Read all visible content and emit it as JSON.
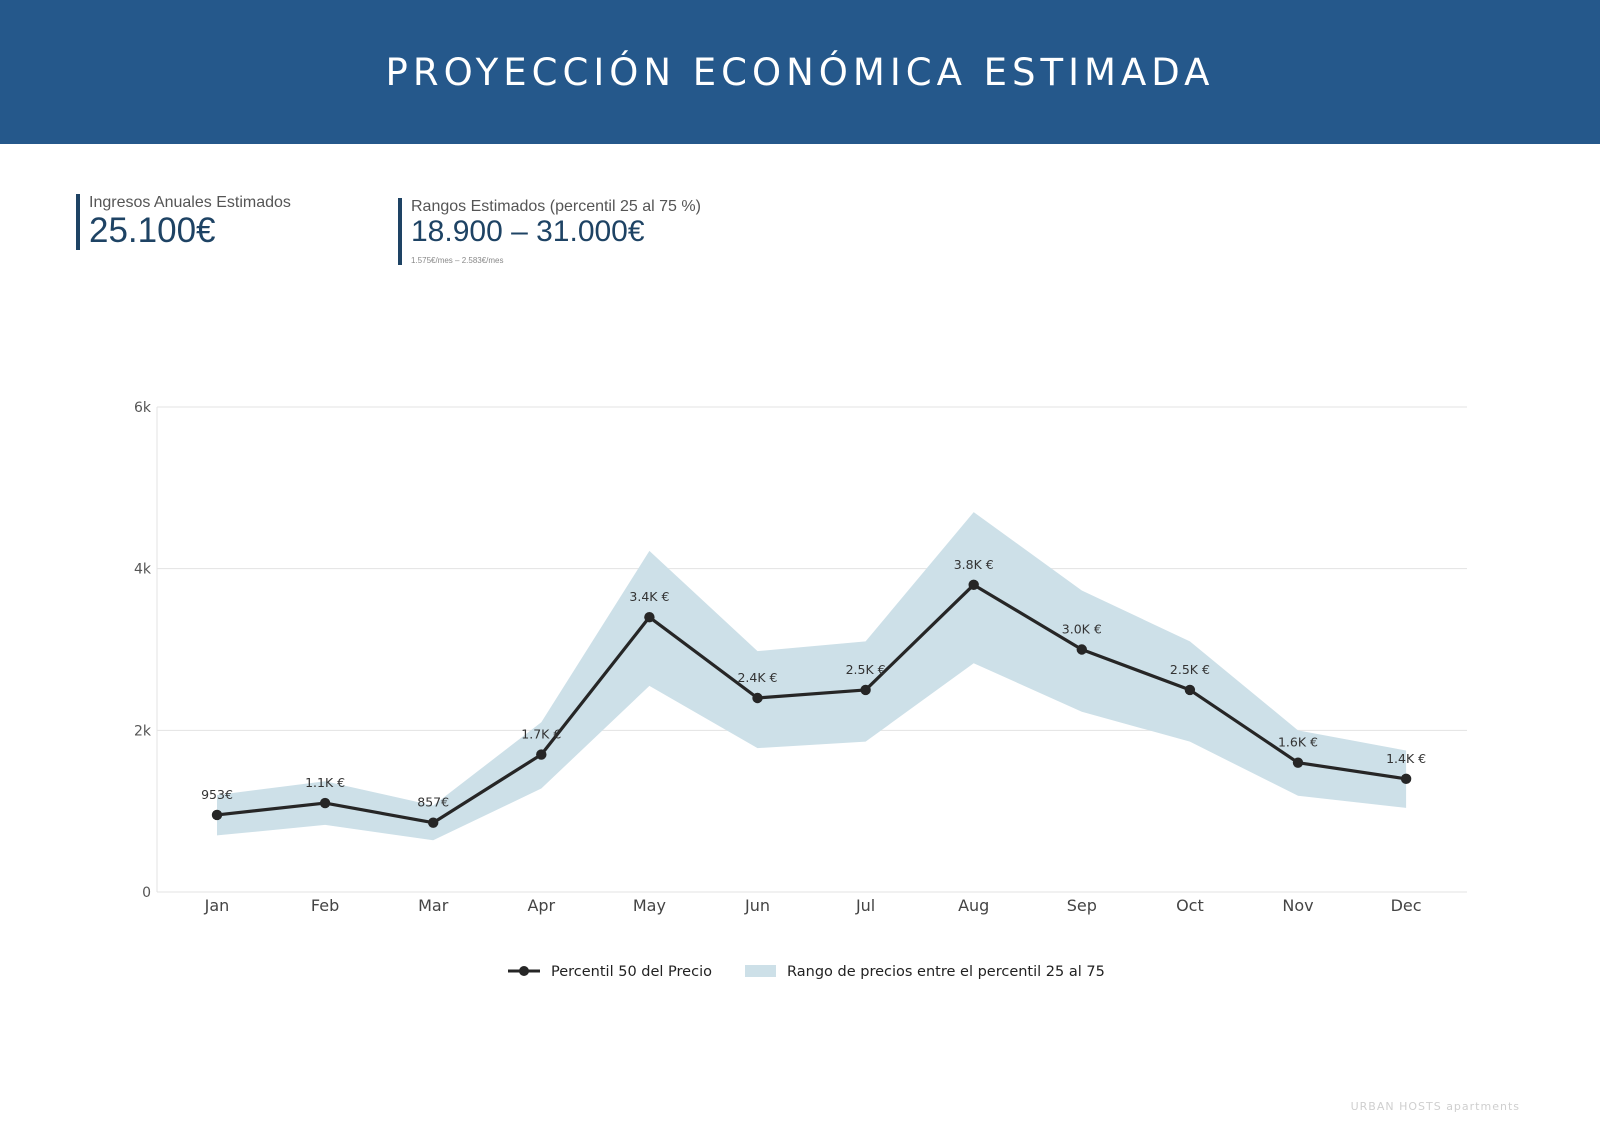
{
  "header": {
    "title": "PROYECCIÓN ECONÓMICA ESTIMADA"
  },
  "kpis": [
    {
      "label": "Ingresos Anuales Estimados",
      "value": "25.100€"
    },
    {
      "label": "Rangos Estimados (percentil 25 al 75 %)",
      "value": "18.900 – 31.000€",
      "sub": "1.575€/mes – 2.583€/mes"
    }
  ],
  "chart_data": {
    "type": "line",
    "categories": [
      "Jan",
      "Feb",
      "Mar",
      "Apr",
      "May",
      "Jun",
      "Jul",
      "Aug",
      "Sep",
      "Oct",
      "Nov",
      "Dec"
    ],
    "series": [
      {
        "name": "Percentil 50 del Precio",
        "values": [
          953,
          1100,
          857,
          1700,
          3400,
          2400,
          2500,
          3800,
          3000,
          2500,
          1600,
          1400
        ],
        "labels": [
          "953€",
          "1.1K €",
          "857€",
          "1.7K €",
          "3.4K €",
          "2.4K €",
          "2.5K €",
          "3.8K €",
          "3.0K €",
          "2.5K €",
          "1.6K €",
          "1.4K €"
        ],
        "color": "#262626"
      },
      {
        "name": "Rango de precios entre el percentil 25 al 75",
        "type": "area",
        "lower": [
          700,
          830,
          640,
          1280,
          2550,
          1780,
          1860,
          2830,
          2230,
          1860,
          1190,
          1040
        ],
        "upper": [
          1200,
          1370,
          1070,
          2100,
          4220,
          2980,
          3100,
          4700,
          3730,
          3100,
          2000,
          1750
        ],
        "color": "#cde0e8"
      }
    ],
    "yticks": [
      0,
      2000,
      4000,
      6000
    ],
    "ytick_labels": [
      "0",
      "2k",
      "4k",
      "6k"
    ],
    "ylim": [
      0,
      6000
    ],
    "grid": true,
    "legend": "bottom-center"
  },
  "footer": {
    "brand": "URBAN HOSTS apartments"
  }
}
